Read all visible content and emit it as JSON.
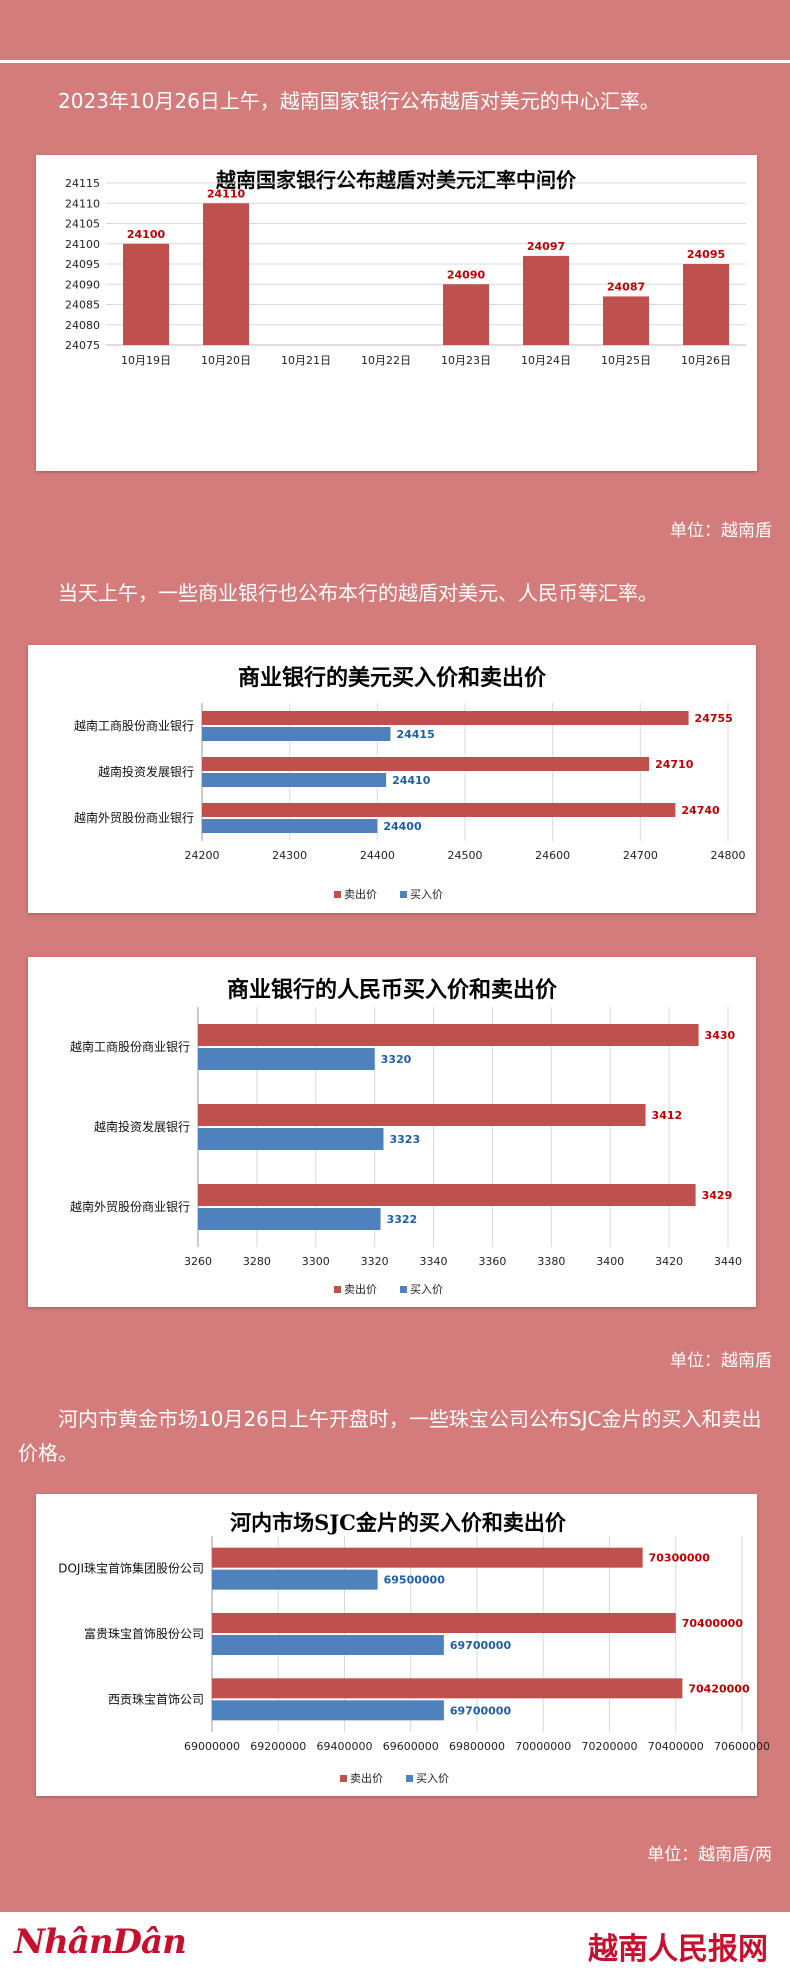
{
  "colors": {
    "background": "#d47b7b",
    "sell": "#c0504d",
    "buy": "#4f81bd",
    "brand": "#c8102e"
  },
  "intro_text": "2023年10月26日上午，越南国家银行公布越盾对美元的中心汇率。",
  "unit_1": "单位：越南盾",
  "para_2": "当天上午，一些商业银行也公布本行的越盾对美元、人民币等汇率。",
  "unit_2": "单位：越南盾",
  "para_3": "河内市黄金市场10月26日上午开盘时，一些珠宝公司公布SJC金片的买入和卖出价格。",
  "unit_3": "单位：越南盾/两",
  "footer": {
    "logo_left": "NhânDân",
    "logo_right": "越南人民报网"
  },
  "chart_data": [
    {
      "type": "bar",
      "title": "越南国家银行公布越盾对美元汇率中间价",
      "categories": [
        "10月19日",
        "10月20日",
        "10月21日",
        "10月22日",
        "10月23日",
        "10月24日",
        "10月25日",
        "10月26日"
      ],
      "values": [
        24100,
        24110,
        null,
        null,
        24090,
        24097,
        24087,
        24095
      ],
      "data_labels": [
        "24100",
        "24110",
        "",
        "",
        "24090",
        "24097",
        "24087",
        "24095"
      ],
      "ylim": [
        24075,
        24115
      ],
      "yticks": [
        "24075",
        "24080",
        "24085",
        "24090",
        "24095",
        "24100",
        "24105",
        "24110",
        "24115"
      ],
      "grid": true
    },
    {
      "type": "bar",
      "orientation": "horizontal",
      "title": "商业银行的美元买入价和卖出价",
      "categories": [
        "越南工商股份商业银行",
        "越南投资发展银行",
        "越南外贸股份商业银行"
      ],
      "series": [
        {
          "name": "卖出价",
          "values": [
            24755,
            24710,
            24740
          ]
        },
        {
          "name": "买入价",
          "values": [
            24415,
            24410,
            24400
          ]
        }
      ],
      "xlim": [
        24200,
        24800
      ],
      "xticks": [
        "24200",
        "24300",
        "24400",
        "24500",
        "24600",
        "24700",
        "24800"
      ],
      "legend": "bottom",
      "grid": true
    },
    {
      "type": "bar",
      "orientation": "horizontal",
      "title": "商业银行的人民币买入价和卖出价",
      "categories": [
        "越南工商股份商业银行",
        "越南投资发展银行",
        "越南外贸股份商业银行"
      ],
      "series": [
        {
          "name": "卖出价",
          "values": [
            3430,
            3412,
            3429
          ]
        },
        {
          "name": "买入价",
          "values": [
            3320,
            3323,
            3322
          ]
        }
      ],
      "xlim": [
        3260,
        3440
      ],
      "xticks": [
        "3260",
        "3280",
        "3300",
        "3320",
        "3340",
        "3360",
        "3380",
        "3400",
        "3420",
        "3440"
      ],
      "legend": "bottom",
      "grid": true
    },
    {
      "type": "bar",
      "orientation": "horizontal",
      "title": "河内市场SJC金片的买入价和卖出价",
      "categories": [
        "DOJI珠宝首饰集团股份公司",
        "富贵珠宝首饰股份公司",
        "西贡珠宝首饰公司"
      ],
      "series": [
        {
          "name": "卖出价",
          "values": [
            70300000,
            70400000,
            70420000
          ]
        },
        {
          "name": "买入价",
          "values": [
            69500000,
            69700000,
            69700000
          ]
        }
      ],
      "xlim": [
        69000000,
        70600000
      ],
      "xticks": [
        "69000000",
        "69200000",
        "69400000",
        "69600000",
        "69800000",
        "70000000",
        "70200000",
        "70400000",
        "70600000"
      ],
      "legend": "bottom",
      "grid": true
    }
  ]
}
